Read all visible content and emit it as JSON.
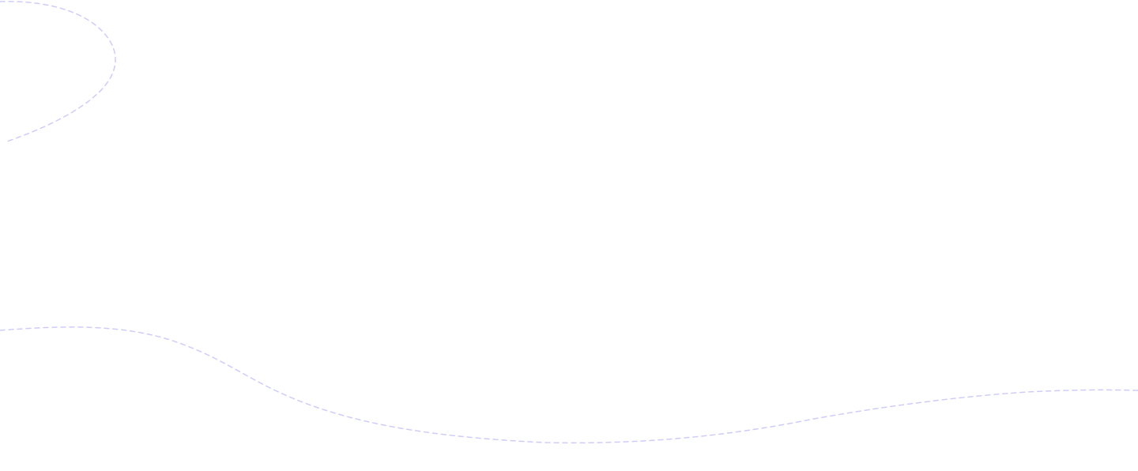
{
  "theme": {
    "background": "#ffffff",
    "decor_stroke": "#cfcdf7"
  },
  "decorations": [
    {
      "name": "top-left-dashed-arc",
      "style": "dashed"
    },
    {
      "name": "bottom-dashed-wave",
      "style": "dashed"
    }
  ]
}
